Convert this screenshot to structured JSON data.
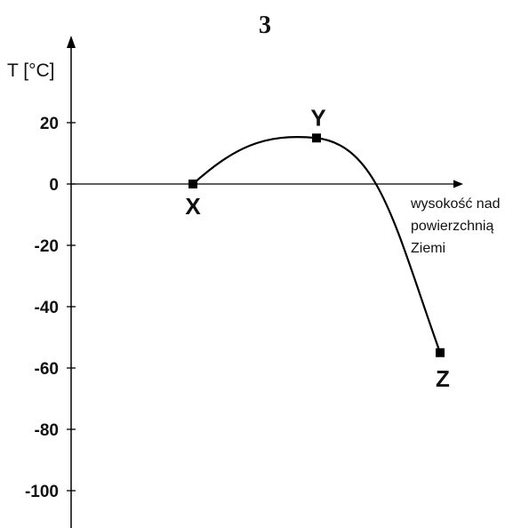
{
  "page_number": "3",
  "chart_data": {
    "type": "line",
    "title": "",
    "ylabel": "T [°C]",
    "xlabel_lines": [
      "wysokość nad",
      "powierzchnią",
      "Ziemi"
    ],
    "y_ticks": [
      20,
      0,
      -20,
      -40,
      -60,
      -80,
      -100
    ],
    "y_tick_labels": [
      "20",
      "0",
      "-20",
      "-40",
      "-60",
      "-80",
      "-100"
    ],
    "ylim": [
      -110,
      40
    ],
    "series": [
      {
        "points": [
          {
            "label": "X",
            "x": 1.0,
            "y": 0
          },
          {
            "label": "Y",
            "x": 2.0,
            "y": 15
          },
          {
            "label": "Z",
            "x": 3.0,
            "y": -55
          }
        ]
      }
    ],
    "grid": false,
    "colors": {
      "line": "#000000",
      "axis": "#000000"
    }
  }
}
